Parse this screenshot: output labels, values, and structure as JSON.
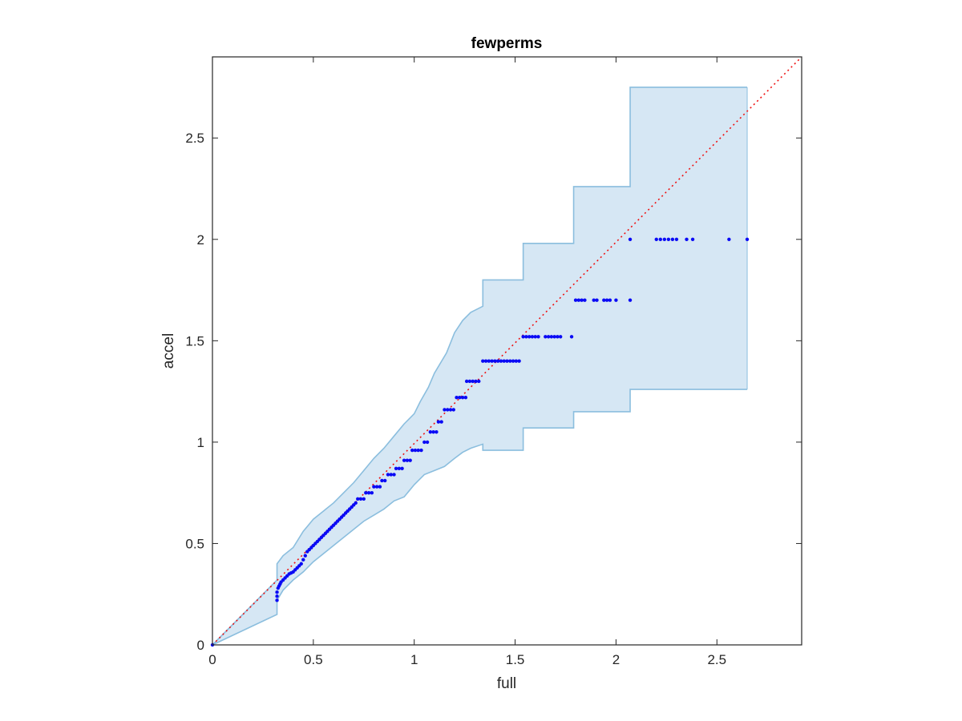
{
  "colors": {
    "band_fill": "#d6e7f4",
    "band_edge": "#8bbede",
    "points": "#0a0af5",
    "reference_line": "#ee1111",
    "axis": "#262626"
  },
  "chart_data": {
    "type": "scatter",
    "title": "fewperms",
    "xlabel": "full",
    "ylabel": "accel",
    "xlim": [
      0,
      2.92
    ],
    "ylim": [
      0,
      2.9
    ],
    "xticks": [
      0,
      0.5,
      1,
      1.5,
      2,
      2.5
    ],
    "xtick_labels": [
      "0",
      "0.5",
      "1",
      "1.5",
      "2",
      "2.5"
    ],
    "yticks": [
      0,
      0.5,
      1,
      1.5,
      2,
      2.5
    ],
    "ytick_labels": [
      "0",
      "0.5",
      "1",
      "1.5",
      "2",
      "2.5"
    ],
    "grid": false,
    "box": true,
    "reference_line": {
      "style": "dotted",
      "x": [
        0,
        2.92
      ],
      "y": [
        0,
        2.9
      ]
    },
    "band": {
      "upper": [
        [
          0,
          0
        ],
        [
          0.32,
          0.32
        ],
        [
          0.32,
          0.4
        ],
        [
          0.35,
          0.44
        ],
        [
          0.4,
          0.48
        ],
        [
          0.45,
          0.56
        ],
        [
          0.5,
          0.62
        ],
        [
          0.55,
          0.66
        ],
        [
          0.6,
          0.7
        ],
        [
          0.65,
          0.75
        ],
        [
          0.7,
          0.8
        ],
        [
          0.75,
          0.86
        ],
        [
          0.8,
          0.92
        ],
        [
          0.85,
          0.97
        ],
        [
          0.9,
          1.03
        ],
        [
          0.95,
          1.09
        ],
        [
          1.0,
          1.14
        ],
        [
          1.03,
          1.2
        ],
        [
          1.07,
          1.27
        ],
        [
          1.1,
          1.34
        ],
        [
          1.16,
          1.44
        ],
        [
          1.2,
          1.54
        ],
        [
          1.24,
          1.6
        ],
        [
          1.28,
          1.64
        ],
        [
          1.34,
          1.67
        ],
        [
          1.34,
          1.8
        ],
        [
          1.54,
          1.8
        ],
        [
          1.54,
          1.98
        ],
        [
          1.79,
          1.98
        ],
        [
          1.79,
          2.26
        ],
        [
          2.07,
          2.26
        ],
        [
          2.07,
          2.75
        ],
        [
          2.65,
          2.75
        ]
      ],
      "lower": [
        [
          0,
          0
        ],
        [
          0.32,
          0.15
        ],
        [
          0.32,
          0.22
        ],
        [
          0.35,
          0.27
        ],
        [
          0.4,
          0.32
        ],
        [
          0.45,
          0.36
        ],
        [
          0.5,
          0.41
        ],
        [
          0.55,
          0.45
        ],
        [
          0.6,
          0.49
        ],
        [
          0.65,
          0.53
        ],
        [
          0.7,
          0.57
        ],
        [
          0.75,
          0.61
        ],
        [
          0.8,
          0.64
        ],
        [
          0.85,
          0.67
        ],
        [
          0.9,
          0.71
        ],
        [
          0.95,
          0.73
        ],
        [
          1.0,
          0.79
        ],
        [
          1.05,
          0.84
        ],
        [
          1.1,
          0.86
        ],
        [
          1.15,
          0.88
        ],
        [
          1.2,
          0.92
        ],
        [
          1.24,
          0.95
        ],
        [
          1.28,
          0.97
        ],
        [
          1.34,
          0.99
        ],
        [
          1.34,
          0.96
        ],
        [
          1.54,
          0.96
        ],
        [
          1.54,
          1.07
        ],
        [
          1.79,
          1.07
        ],
        [
          1.79,
          1.15
        ],
        [
          2.07,
          1.15
        ],
        [
          2.07,
          1.26
        ],
        [
          2.65,
          1.26
        ]
      ]
    },
    "points": {
      "curve": [
        [
          0.32,
          0.22
        ],
        [
          0.32,
          0.24
        ],
        [
          0.32,
          0.26
        ],
        [
          0.325,
          0.28
        ],
        [
          0.33,
          0.29
        ],
        [
          0.335,
          0.3
        ],
        [
          0.34,
          0.31
        ],
        [
          0.35,
          0.32
        ],
        [
          0.36,
          0.33
        ],
        [
          0.37,
          0.34
        ],
        [
          0.38,
          0.35
        ],
        [
          0.39,
          0.355
        ],
        [
          0.4,
          0.36
        ],
        [
          0.41,
          0.37
        ],
        [
          0.42,
          0.38
        ],
        [
          0.43,
          0.39
        ],
        [
          0.44,
          0.4
        ],
        [
          0.45,
          0.42
        ],
        [
          0.46,
          0.44
        ],
        [
          0.47,
          0.46
        ],
        [
          0.48,
          0.47
        ],
        [
          0.49,
          0.48
        ],
        [
          0.5,
          0.49
        ],
        [
          0.51,
          0.5
        ],
        [
          0.52,
          0.51
        ],
        [
          0.53,
          0.52
        ],
        [
          0.54,
          0.53
        ],
        [
          0.55,
          0.54
        ],
        [
          0.56,
          0.55
        ],
        [
          0.57,
          0.56
        ],
        [
          0.58,
          0.57
        ],
        [
          0.59,
          0.58
        ],
        [
          0.6,
          0.59
        ],
        [
          0.61,
          0.6
        ],
        [
          0.62,
          0.61
        ],
        [
          0.63,
          0.62
        ],
        [
          0.64,
          0.63
        ],
        [
          0.65,
          0.64
        ],
        [
          0.66,
          0.65
        ],
        [
          0.67,
          0.66
        ],
        [
          0.68,
          0.67
        ],
        [
          0.69,
          0.68
        ],
        [
          0.7,
          0.69
        ],
        [
          0.71,
          0.7
        ]
      ],
      "steps": [
        {
          "y": 0.72,
          "x": [
            0.72,
            0.735,
            0.75
          ]
        },
        {
          "y": 0.75,
          "x": [
            0.76,
            0.775,
            0.79
          ]
        },
        {
          "y": 0.78,
          "x": [
            0.8,
            0.815,
            0.83
          ]
        },
        {
          "y": 0.81,
          "x": [
            0.84,
            0.855
          ]
        },
        {
          "y": 0.84,
          "x": [
            0.87,
            0.885,
            0.9
          ]
        },
        {
          "y": 0.87,
          "x": [
            0.91,
            0.925,
            0.94
          ]
        },
        {
          "y": 0.91,
          "x": [
            0.95,
            0.965,
            0.98
          ]
        },
        {
          "y": 0.96,
          "x": [
            0.99,
            1.005,
            1.02,
            1.035
          ]
        },
        {
          "y": 1.0,
          "x": [
            1.05,
            1.065
          ]
        },
        {
          "y": 1.05,
          "x": [
            1.08,
            1.095,
            1.11
          ]
        },
        {
          "y": 1.1,
          "x": [
            1.12,
            1.135
          ]
        },
        {
          "y": 1.16,
          "x": [
            1.15,
            1.165,
            1.18,
            1.195
          ]
        },
        {
          "y": 1.22,
          "x": [
            1.21,
            1.225,
            1.24,
            1.255
          ]
        },
        {
          "y": 1.3,
          "x": [
            1.26,
            1.275,
            1.29,
            1.305,
            1.32
          ]
        },
        {
          "y": 1.4,
          "x": [
            1.34,
            1.355,
            1.37,
            1.385,
            1.4,
            1.415,
            1.43,
            1.445,
            1.46,
            1.475,
            1.49,
            1.505,
            1.52
          ]
        },
        {
          "y": 1.52,
          "x": [
            1.54,
            1.555,
            1.57,
            1.585,
            1.6,
            1.615,
            1.65,
            1.665,
            1.68,
            1.695,
            1.71,
            1.725,
            1.78
          ]
        },
        {
          "y": 1.7,
          "x": [
            1.8,
            1.815,
            1.83,
            1.845,
            1.89,
            1.905,
            1.94,
            1.955,
            1.97,
            2.0,
            2.07
          ]
        },
        {
          "y": 2.0,
          "x": [
            2.07,
            2.2,
            2.22,
            2.24,
            2.26,
            2.28,
            2.3,
            2.35,
            2.38,
            2.56,
            2.65
          ]
        }
      ]
    }
  }
}
